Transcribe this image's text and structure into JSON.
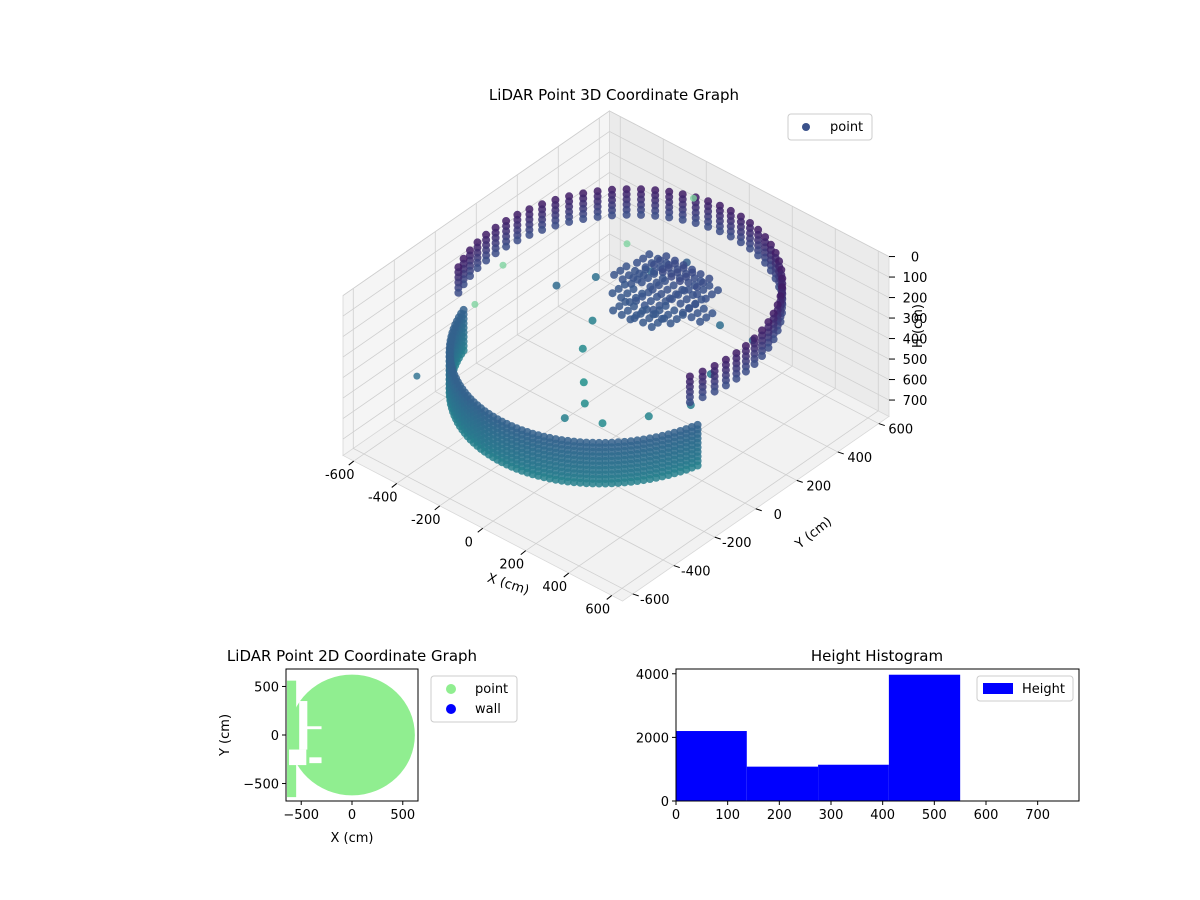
{
  "colors": {
    "viridis_dark": "#440154",
    "viridis_mid": "#31688e",
    "viridis_teal": "#2a788e",
    "viridis_green": "#5ec962",
    "viridis_yellow": "#fde725",
    "point_2d": "#90ee90",
    "wall_2d": "#0000ff",
    "histogram_bar": "#0000ff"
  },
  "chart_data": [
    {
      "type": "scatter",
      "title": "LiDAR Point 3D Coordinate Graph",
      "xlabel": "X (cm)",
      "ylabel": "Y (cm)",
      "zlabel": "H (cm)",
      "xlim": [
        -650,
        650
      ],
      "ylim": [
        -650,
        650
      ],
      "zlim": [
        0,
        780
      ],
      "z_inverted": true,
      "grid": true,
      "legend_position": "top-right",
      "x_ticks": [
        -600,
        -400,
        -200,
        0,
        200,
        400,
        600
      ],
      "y_ticks": [
        -600,
        -400,
        -200,
        0,
        200,
        400,
        600
      ],
      "z_ticks": [
        0,
        100,
        200,
        300,
        400,
        500,
        600,
        700
      ],
      "series": [
        {
          "name": "point",
          "description": "ring of wall points around origin, radius ~560 cm",
          "wall_ring": {
            "radius": 560,
            "h_top": 70,
            "h_bottom": 520,
            "arc_start_deg": -20,
            "arc_end_deg": 205
          },
          "ring_dense_band": {
            "radius": 560,
            "h_top": 320,
            "h_bottom": 520,
            "arc_start_deg": 200,
            "arc_end_deg": 345
          },
          "ceiling_cluster": [
            [
              -120,
              300,
              210
            ],
            [
              -60,
              320,
              200
            ],
            [
              0,
              300,
              190
            ],
            [
              60,
              320,
              200
            ],
            [
              120,
              300,
              210
            ],
            [
              -150,
              220,
              230
            ],
            [
              -80,
              240,
              220
            ],
            [
              20,
              230,
              215
            ],
            [
              100,
              240,
              225
            ],
            [
              170,
              220,
              240
            ],
            [
              -100,
              160,
              250
            ],
            [
              0,
              170,
              240
            ],
            [
              90,
              160,
              250
            ],
            [
              -40,
              100,
              260
            ],
            [
              50,
              110,
              255
            ]
          ],
          "scattered_inner": [
            [
              -300,
              200,
              520
            ],
            [
              -250,
              100,
              560
            ],
            [
              -150,
              0,
              600
            ],
            [
              -50,
              -100,
              580
            ],
            [
              80,
              -150,
              570
            ],
            [
              200,
              -50,
              540
            ],
            [
              300,
              50,
              500
            ],
            [
              250,
              200,
              480
            ],
            [
              -380,
              300,
              420
            ],
            [
              -420,
              150,
              380
            ],
            [
              150,
              350,
              400
            ],
            [
              -200,
              380,
              350
            ],
            [
              350,
              300,
              330
            ],
            [
              -100,
              450,
              300
            ],
            [
              0,
              -250,
              520
            ]
          ],
          "outliers": [
            [
              -640,
              120,
              380,
              "green"
            ],
            [
              -580,
              -80,
              400,
              "green"
            ],
            [
              -640,
              -300,
              630,
              "teal"
            ],
            [
              -250,
              640,
              200,
              "green"
            ],
            [
              -330,
              400,
              300,
              "green"
            ]
          ]
        }
      ]
    },
    {
      "type": "scatter",
      "title": "LiDAR Point 2D Coordinate Graph",
      "xlabel": "X (cm)",
      "ylabel": "Y (cm)",
      "xlim": [
        -650,
        650
      ],
      "ylim": [
        -680,
        680
      ],
      "x_ticks": [
        -500,
        0,
        500
      ],
      "y_ticks": [
        -500,
        0,
        500
      ],
      "legend_position": "outside-right",
      "series": [
        {
          "name": "point",
          "color": "#90ee90",
          "main_radius": 560
        },
        {
          "name": "wall",
          "color": "#0000ff",
          "values": []
        }
      ],
      "gaps": [
        {
          "x": -520,
          "y": 350,
          "w": 80,
          "h": 500
        },
        {
          "x": -470,
          "y": 90,
          "w": 170,
          "h": 30
        },
        {
          "x": -620,
          "y": -150,
          "w": 170,
          "h": 160
        },
        {
          "x": -420,
          "y": -230,
          "w": 120,
          "h": 60
        }
      ]
    },
    {
      "type": "bar",
      "title": "Height Histogram",
      "xlabel": "",
      "ylabel": "",
      "xlim": [
        0,
        780
      ],
      "ylim": [
        0,
        4150
      ],
      "x_ticks": [
        0,
        100,
        200,
        300,
        400,
        500,
        600,
        700
      ],
      "y_ticks": [
        0,
        2000,
        4000
      ],
      "legend_position": "top-right",
      "series": [
        {
          "name": "Height",
          "bins": [
            {
              "start": 0,
              "end": 137,
              "count": 2200
            },
            {
              "start": 137,
              "end": 275,
              "count": 1080
            },
            {
              "start": 275,
              "end": 412,
              "count": 1140
            },
            {
              "start": 412,
              "end": 550,
              "count": 3970
            },
            {
              "start": 550,
              "end": 687,
              "count": 0
            },
            {
              "start": 687,
              "end": 780,
              "count": 0
            }
          ]
        }
      ]
    }
  ]
}
